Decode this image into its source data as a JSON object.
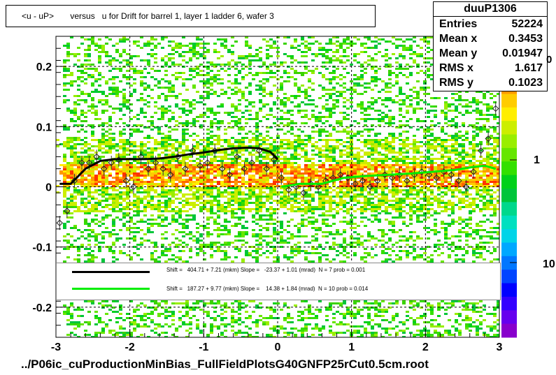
{
  "title": "<u - uP>       versus   u for Drift for barrel 1, layer 1 ladder 6, wafer 3",
  "footer": "../P06ic_cuProductionMinBias_FullFieldPlotsG40GNFP25rCut0.5cm.root",
  "stats": {
    "name": "duuP1306",
    "rows": [
      {
        "key": "Entries",
        "value": "52224"
      },
      {
        "key": "Mean x",
        "value": "0.3453"
      },
      {
        "key": "Mean y",
        "value": "0.01947"
      },
      {
        "key": "RMS x",
        "value": "1.617"
      },
      {
        "key": "RMS y",
        "value": "0.1023"
      }
    ]
  },
  "colorbar_labels": [
    "1",
    "10"
  ],
  "colorbar_top_partial": "0",
  "chart_data": {
    "type": "heatmap",
    "xlim": [
      -3,
      3
    ],
    "ylim": [
      -0.25,
      0.25
    ],
    "x_ticks": [
      "-3",
      "-2",
      "-1",
      "0",
      "1",
      "2",
      "3"
    ],
    "y_ticks": [
      "-0.2",
      "-0.1",
      "0",
      "0.1",
      "0.2"
    ],
    "grid": true,
    "profile": {
      "x": [
        -2.95,
        -2.85,
        -2.75,
        -2.65,
        -2.55,
        -2.45,
        -2.35,
        -2.25,
        -2.15,
        -2.05,
        -1.95,
        -1.85,
        -1.75,
        -1.65,
        -1.55,
        -1.45,
        -1.35,
        -1.25,
        -1.15,
        -1.05,
        -0.95,
        -0.85,
        -0.75,
        -0.65,
        -0.55,
        -0.45,
        -0.35,
        -0.25,
        -0.15,
        -0.05,
        0.05,
        0.15,
        0.25,
        0.35,
        0.45,
        0.55,
        0.65,
        0.75,
        0.85,
        0.95,
        1.05,
        1.15,
        1.25,
        1.35,
        1.45,
        1.55,
        1.65,
        1.75,
        1.85,
        1.95,
        2.05,
        2.15,
        2.25,
        2.35,
        2.45,
        2.55,
        2.65,
        2.75,
        2.85,
        2.95
      ],
      "y": [
        -0.06,
        -0.04,
        0.01,
        0.04,
        0.04,
        0.05,
        0.03,
        0.04,
        0.045,
        0.01,
        0.0,
        0.05,
        0.03,
        0.04,
        0.03,
        0.02,
        0.05,
        0.03,
        0.06,
        0.035,
        0.04,
        0.06,
        0.03,
        0.02,
        0.05,
        0.03,
        0.04,
        0.06,
        0.03,
        0.045,
        0.015,
        -0.005,
        0.0,
        -0.01,
        0.005,
        0.0,
        0.01,
        0.015,
        0.02,
        0.015,
        0.005,
        0.01,
        0.0,
        0.01,
        0.02,
        0.015,
        0.02,
        0.01,
        0.02,
        0.025,
        0.02,
        0.015,
        0.025,
        0.02,
        0.01,
        0.0,
        0.025,
        0.06,
        0.08,
        0.13
      ]
    },
    "fits": [
      {
        "color": "#000000",
        "label": "Shift =   404.71 + 7.21 (mkm) Slope =   -23.37 + 1.01 (mrad)  N = 7 prob = 0.001",
        "x": [
          -2.95,
          -2.8,
          -2.6,
          -2.4,
          -2.2,
          -2.0,
          -1.8,
          -1.6,
          -1.4,
          -1.2,
          -1.0,
          -0.8,
          -0.6,
          -0.4,
          -0.25,
          -0.1,
          0.0
        ],
        "y": [
          0.005,
          0.005,
          0.03,
          0.043,
          0.046,
          0.046,
          0.046,
          0.047,
          0.05,
          0.054,
          0.057,
          0.061,
          0.064,
          0.065,
          0.064,
          0.058,
          0.046
        ]
      },
      {
        "color": "#00ee00",
        "label": "Shift =   187.27 + 9.77 (mkm) Slope =    14.38 + 1.84 (mrad)  N = 10 prob = 0.014",
        "x": [
          0.05,
          0.3,
          0.6,
          0.9,
          1.2,
          1.5,
          1.8,
          2.1,
          2.4,
          2.65,
          2.8,
          2.95
        ],
        "y": [
          0.0,
          0.005,
          0.005,
          0.015,
          0.018,
          0.02,
          0.022,
          0.025,
          0.028,
          0.033,
          0.035,
          0.03
        ]
      }
    ]
  }
}
